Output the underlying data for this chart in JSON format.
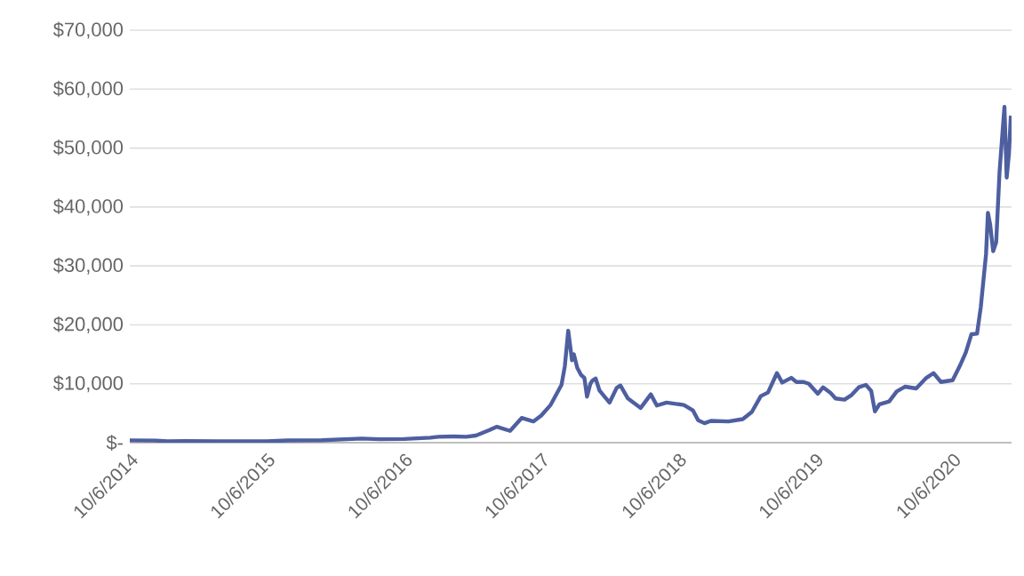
{
  "chart_data": {
    "type": "line",
    "x": [
      "2014-10-06",
      "2014-12-15",
      "2015-01-15",
      "2015-03-01",
      "2015-06-01",
      "2015-08-15",
      "2015-10-06",
      "2015-12-01",
      "2016-03-01",
      "2016-06-15",
      "2016-08-01",
      "2016-10-06",
      "2016-12-15",
      "2017-01-05",
      "2017-02-15",
      "2017-03-20",
      "2017-04-15",
      "2017-05-20",
      "2017-06-10",
      "2017-07-15",
      "2017-08-15",
      "2017-09-15",
      "2017-10-06",
      "2017-10-31",
      "2017-11-29",
      "2017-12-08",
      "2017-12-17",
      "2017-12-27",
      "2018-01-01",
      "2018-01-10",
      "2018-01-20",
      "2018-01-29",
      "2018-02-05",
      "2018-02-14",
      "2018-02-19",
      "2018-02-28",
      "2018-03-10",
      "2018-03-24",
      "2018-04-06",
      "2018-04-25",
      "2018-05-05",
      "2018-05-25",
      "2018-06-28",
      "2018-07-25",
      "2018-08-10",
      "2018-09-05",
      "2018-10-21",
      "2018-11-14",
      "2018-11-28",
      "2018-12-15",
      "2019-01-01",
      "2019-02-17",
      "2019-03-27",
      "2019-04-20",
      "2019-05-14",
      "2019-06-02",
      "2019-06-26",
      "2019-07-10",
      "2019-08-03",
      "2019-08-17",
      "2019-09-05",
      "2019-09-19",
      "2019-10-13",
      "2019-10-27",
      "2019-11-15",
      "2019-11-29",
      "2019-12-23",
      "2020-01-11",
      "2020-01-30",
      "2020-02-18",
      "2020-03-03",
      "2020-03-13",
      "2020-03-25",
      "2020-04-20",
      "2020-05-10",
      "2020-06-01",
      "2020-07-01",
      "2020-07-28",
      "2020-08-16",
      "2020-09-05",
      "2020-10-06",
      "2020-10-25",
      "2020-11-10",
      "2020-11-25",
      "2020-12-10",
      "2020-12-20",
      "2021-01-03",
      "2021-01-08",
      "2021-01-14",
      "2021-01-22",
      "2021-01-30",
      "2021-02-08",
      "2021-02-21",
      "2021-02-27",
      "2021-03-05",
      "2021-03-10"
    ],
    "series": [
      {
        "color": "#4e5fa0",
        "values": [
          400,
          350,
          220,
          280,
          240,
          250,
          240,
          380,
          420,
          700,
          580,
          620,
          850,
          1000,
          1050,
          1000,
          1200,
          2100,
          2700,
          2000,
          4200,
          3600,
          4600,
          6400,
          9800,
          13000,
          19000,
          14000,
          15000,
          12700,
          11500,
          11000,
          7800,
          10000,
          10500,
          10900,
          8900,
          7800,
          6800,
          9300,
          9700,
          7500,
          5900,
          8200,
          6300,
          6800,
          6400,
          5500,
          3800,
          3300,
          3700,
          3600,
          4000,
          5200,
          7900,
          8500,
          11800,
          10200,
          11000,
          10300,
          10300,
          10000,
          8300,
          9400,
          8500,
          7500,
          7300,
          8100,
          9400,
          9800,
          8800,
          5300,
          6500,
          7000,
          8700,
          9500,
          9200,
          11000,
          11800,
          10300,
          10600,
          13000,
          15300,
          18400,
          18500,
          23000,
          32000,
          39000,
          37000,
          32500,
          34000,
          46000,
          57000,
          45000,
          49000,
          55500
        ]
      }
    ],
    "xlim": [
      "2014-10-06",
      "2021-03-12"
    ],
    "xticks": [
      {
        "value": "2014-10-06",
        "label": "10/6/2014"
      },
      {
        "value": "2015-10-06",
        "label": "10/6/2015"
      },
      {
        "value": "2016-10-06",
        "label": "10/6/2016"
      },
      {
        "value": "2017-10-06",
        "label": "10/6/2017"
      },
      {
        "value": "2018-10-06",
        "label": "10/6/2018"
      },
      {
        "value": "2019-10-06",
        "label": "10/6/2019"
      },
      {
        "value": "2020-10-06",
        "label": "10/6/2020"
      }
    ],
    "ylim": [
      0,
      70000
    ],
    "yticks": [
      {
        "value": 0,
        "label": "$-"
      },
      {
        "value": 10000,
        "label": "$10,000"
      },
      {
        "value": 20000,
        "label": "$20,000"
      },
      {
        "value": 30000,
        "label": "$30,000"
      },
      {
        "value": 40000,
        "label": "$40,000"
      },
      {
        "value": 50000,
        "label": "$50,000"
      },
      {
        "value": 60000,
        "label": "$60,000"
      },
      {
        "value": 70000,
        "label": "$70,000"
      }
    ],
    "grid": "y",
    "marker": "none",
    "line_style": "solid"
  }
}
